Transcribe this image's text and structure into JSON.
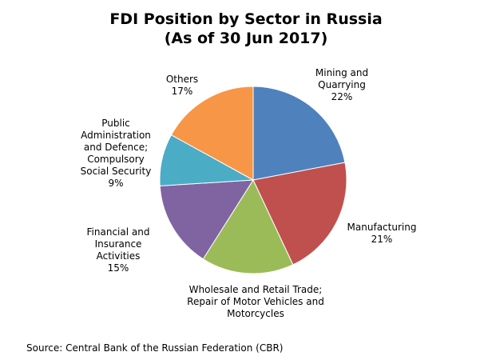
{
  "title_line1": "FDI Position by Sector in Russia",
  "title_line2": "(As of 30 Jun 2017)",
  "source": "Source: Central Bank of the Russian Federation (CBR)",
  "chart_data": {
    "type": "pie",
    "title": "FDI Position by Sector in Russia (As of 30 Jun 2017)",
    "slices": [
      {
        "label_lines": [
          "Mining and",
          "Quarrying"
        ],
        "value": 22,
        "value_label": "22%",
        "color": "#4F81BD"
      },
      {
        "label_lines": [
          "Manufacturing"
        ],
        "value": 21,
        "value_label": "21%",
        "color": "#C0504D"
      },
      {
        "label_lines": [
          "Wholesale and Retail Trade;",
          "Repair of Motor Vehicles and",
          "Motorcycles"
        ],
        "value": 16,
        "value_label": "",
        "color": "#9BBB59"
      },
      {
        "label_lines": [
          "Financial and",
          "Insurance",
          "Activities"
        ],
        "value": 15,
        "value_label": "15%",
        "color": "#8064A2"
      },
      {
        "label_lines": [
          "Public",
          "Administration",
          "and Defence;",
          "Compulsory",
          "Social Security"
        ],
        "value": 9,
        "value_label": "9%",
        "color": "#4BACC6"
      },
      {
        "label_lines": [
          "Others"
        ],
        "value": 17,
        "value_label": "17%",
        "color": "#F79646"
      }
    ]
  }
}
